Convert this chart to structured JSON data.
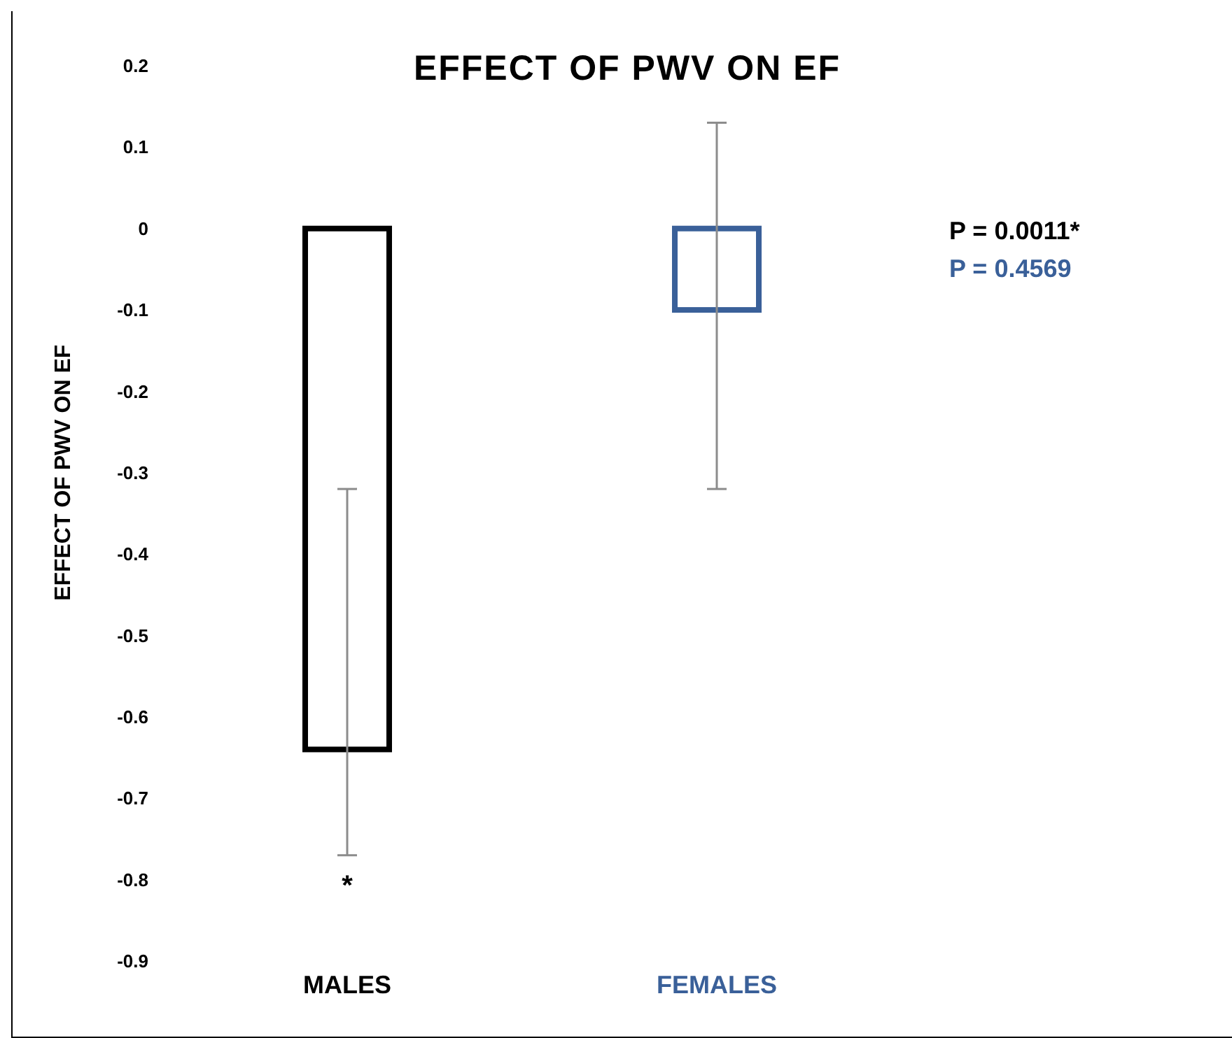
{
  "chart_data": {
    "type": "bar",
    "title": "EFFECT OF PWV ON EF",
    "ylabel": "EFFECT OF PWV ON EF",
    "categories": [
      "MALES",
      "FEMALES"
    ],
    "values": [
      -0.64,
      -0.1
    ],
    "colors": [
      "#000000",
      "#3a6099"
    ],
    "errors": [
      [
        -0.77,
        -0.32
      ],
      [
        -0.32,
        0.13
      ]
    ],
    "ylim": [
      -0.9,
      0.2
    ],
    "yticks": [
      -0.9,
      -0.8,
      -0.7,
      -0.6,
      -0.5,
      -0.4,
      -0.3,
      -0.2,
      -0.1,
      0,
      0.1,
      0.2
    ],
    "grid": false,
    "annotations": [
      "P = 0.0011*",
      "P = 0.4569",
      "*"
    ]
  }
}
